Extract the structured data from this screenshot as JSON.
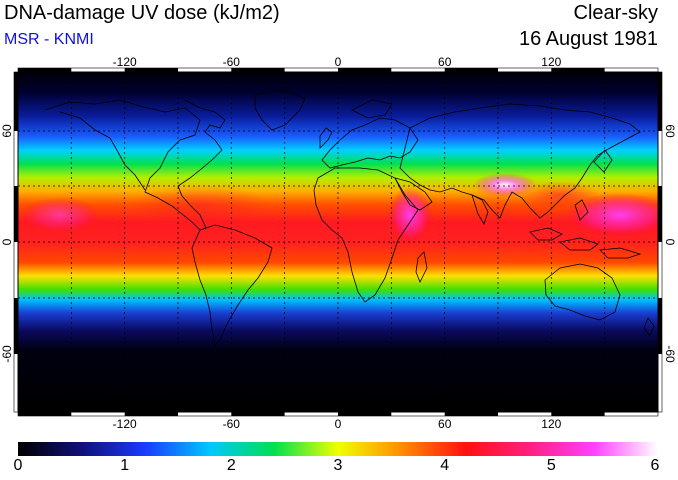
{
  "title": "DNA-damage UV dose (kJ/m2)",
  "credit": "MSR - KNMI",
  "condition": "Clear-sky",
  "date": "16 August 1981",
  "map": {
    "projection": "equirectangular",
    "lon_ticks": [
      "-120",
      "-60",
      "0",
      "60",
      "120"
    ],
    "lat_ticks": [
      "60",
      "0",
      "-60"
    ],
    "gridlines": "dashed every 30 degrees"
  },
  "colorbar": {
    "ticks": [
      "0",
      "1",
      "2",
      "3",
      "4",
      "5",
      "6"
    ],
    "min": 0,
    "max": 6,
    "colors": [
      "#000000",
      "#10107a",
      "#1a3cff",
      "#00c8ff",
      "#00e050",
      "#f0ff00",
      "#ff8c00",
      "#ff1010",
      "#ff2080",
      "#ff40ff",
      "#ffffff"
    ]
  }
}
